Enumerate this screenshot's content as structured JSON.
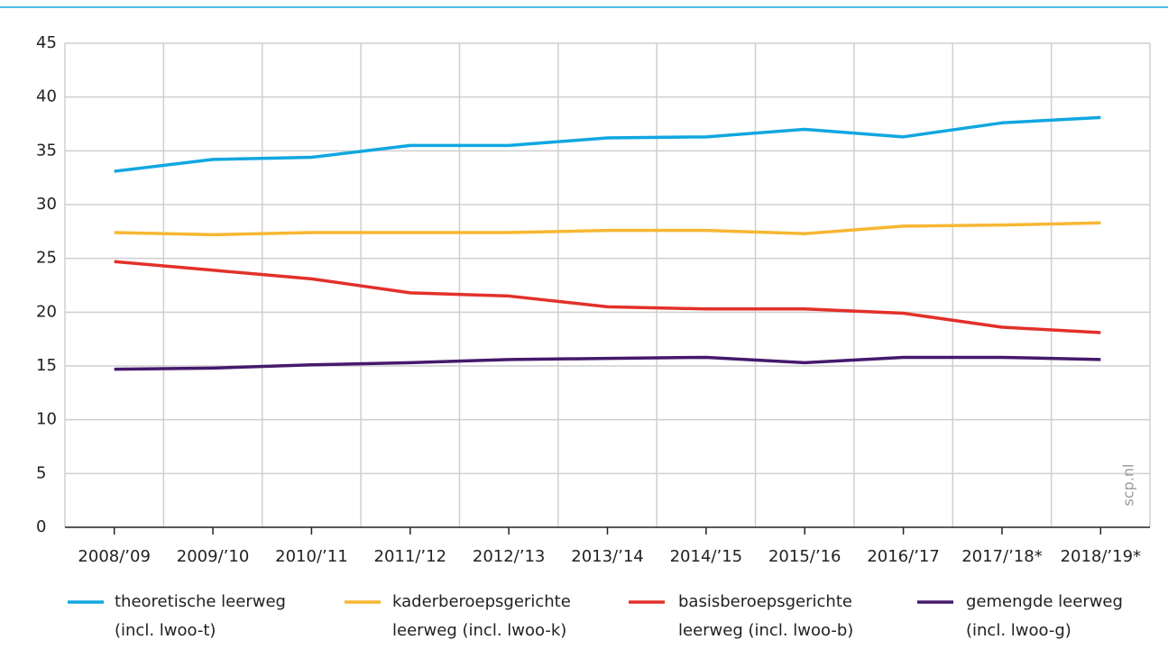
{
  "chart_data": {
    "type": "line",
    "categories": [
      "2008/’09",
      "2009/’10",
      "2010/’11",
      "2011/’12",
      "2012/’13",
      "2013/’14",
      "2014/’15",
      "2015/’16",
      "2016/’17",
      "2017/’18*",
      "2018/’19*"
    ],
    "series": [
      {
        "name": "theoretische leerweg\n(incl. lwoo-t)",
        "color": "#10a7e1",
        "values": [
          33.1,
          34.2,
          34.4,
          35.5,
          35.5,
          36.2,
          36.3,
          37.0,
          36.3,
          37.6,
          38.1
        ]
      },
      {
        "name": "kaderberoepsgerichte\nleerweg (incl. lwoo-k)",
        "color": "#f7b733",
        "values": [
          27.4,
          27.2,
          27.4,
          27.4,
          27.4,
          27.6,
          27.6,
          27.3,
          28.0,
          28.1,
          28.3
        ]
      },
      {
        "name": "basisberoepsgerichte\nleerweg (incl. lwoo-b)",
        "color": "#e3302a",
        "values": [
          24.7,
          23.9,
          23.1,
          21.8,
          21.5,
          20.5,
          20.3,
          20.3,
          19.9,
          18.6,
          18.1
        ]
      },
      {
        "name": "gemengde leerweg\n(incl. lwoo-g)",
        "color": "#46196c",
        "values": [
          14.7,
          14.8,
          15.1,
          15.3,
          15.6,
          15.7,
          15.8,
          15.3,
          15.8,
          15.8,
          15.6
        ]
      }
    ],
    "ylim": [
      0,
      45
    ],
    "yticks": [
      0,
      5,
      10,
      15,
      20,
      25,
      30,
      35,
      40,
      45
    ],
    "grid": true,
    "watermark": "scp.nl"
  }
}
